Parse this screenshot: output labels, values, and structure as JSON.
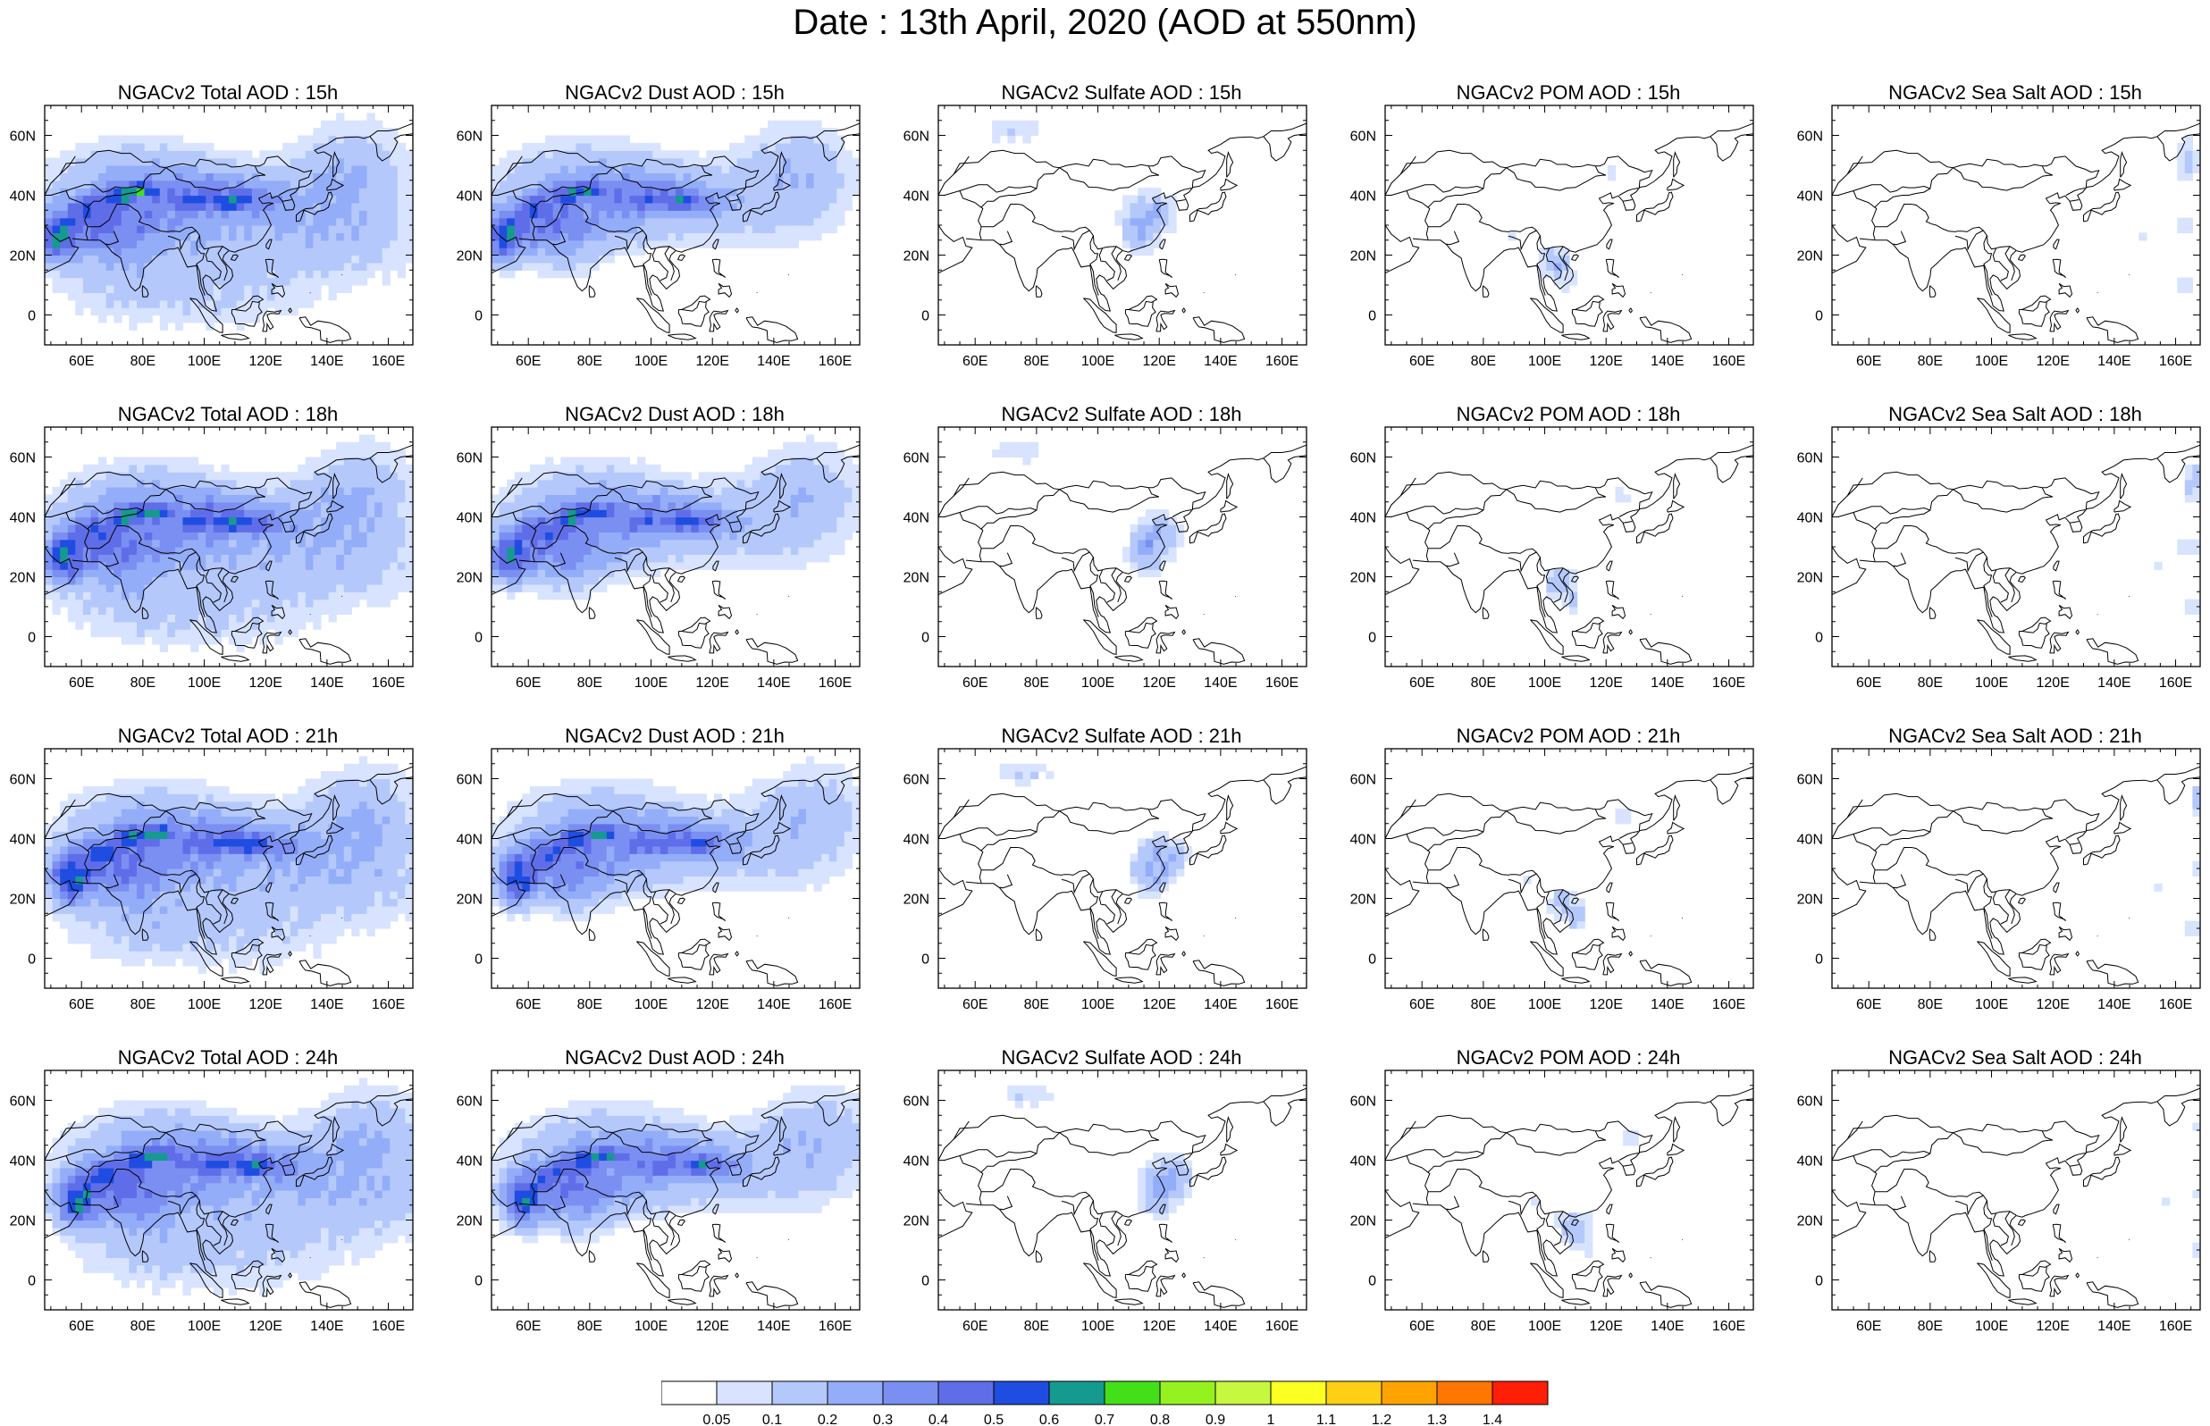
{
  "title": "Date : 13th April, 2020 (AOD at 550nm)",
  "axes": {
    "lon_ticks": [
      "60E",
      "80E",
      "100E",
      "120E",
      "140E",
      "160E"
    ],
    "lon_values": [
      60,
      80,
      100,
      120,
      140,
      160
    ],
    "lat_ticks": [
      "60N",
      "40N",
      "20N",
      "0"
    ],
    "lat_values": [
      60,
      40,
      20,
      0
    ],
    "lon_range": [
      48,
      168
    ],
    "lat_range": [
      -10,
      70
    ]
  },
  "panels": [
    {
      "title": "NGACv2 Total AOD : 15h",
      "species": "total"
    },
    {
      "title": "NGACv2 Dust AOD : 15h",
      "species": "dust"
    },
    {
      "title": "NGACv2 Sulfate AOD : 15h",
      "species": "sulfate"
    },
    {
      "title": "NGACv2 POM AOD : 15h",
      "species": "pom"
    },
    {
      "title": "NGACv2 Sea Salt AOD : 15h",
      "species": "seasalt"
    },
    {
      "title": "NGACv2 Total AOD : 18h",
      "species": "total"
    },
    {
      "title": "NGACv2 Dust AOD : 18h",
      "species": "dust"
    },
    {
      "title": "NGACv2 Sulfate AOD : 18h",
      "species": "sulfate"
    },
    {
      "title": "NGACv2 POM AOD : 18h",
      "species": "pom"
    },
    {
      "title": "NGACv2 Sea Salt AOD : 18h",
      "species": "seasalt"
    },
    {
      "title": "NGACv2 Total AOD : 21h",
      "species": "total"
    },
    {
      "title": "NGACv2 Dust AOD : 21h",
      "species": "dust"
    },
    {
      "title": "NGACv2 Sulfate AOD : 21h",
      "species": "sulfate"
    },
    {
      "title": "NGACv2 POM AOD : 21h",
      "species": "pom"
    },
    {
      "title": "NGACv2 Sea Salt AOD : 21h",
      "species": "seasalt"
    },
    {
      "title": "NGACv2 Total AOD : 24h",
      "species": "total"
    },
    {
      "title": "NGACv2 Dust AOD : 24h",
      "species": "dust"
    },
    {
      "title": "NGACv2 Sulfate AOD : 24h",
      "species": "sulfate"
    },
    {
      "title": "NGACv2 POM AOD : 24h",
      "species": "pom"
    },
    {
      "title": "NGACv2 Sea Salt  AOD : 24h",
      "species": "seasalt"
    }
  ],
  "colorbar": {
    "labels": [
      "0.05",
      "0.1",
      "0.2",
      "0.3",
      "0.4",
      "0.5",
      "0.6",
      "0.7",
      "0.8",
      "0.9",
      "1",
      "1.1",
      "1.2",
      "1.3",
      "1.4"
    ],
    "colors": [
      "#ffffff",
      "#d7e3ff",
      "#b4c8fb",
      "#94adf8",
      "#7b8ff2",
      "#5f6ee8",
      "#1f4de1",
      "#159a8f",
      "#43e01a",
      "#96f21e",
      "#c7f73e",
      "#fbff22",
      "#ffcf15",
      "#ffa300",
      "#ff7600",
      "#ff1e06"
    ]
  }
}
